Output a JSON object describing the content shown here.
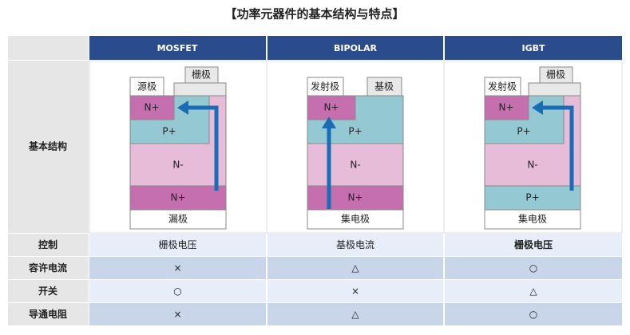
{
  "title": "【功率元器件的基本结构与特点】",
  "header": {
    "columns": [
      "MOSFET",
      "BIPOLAR",
      "IGBT"
    ]
  },
  "structure": {
    "label": "基本结构",
    "diagrams": [
      {
        "top_left": "源极",
        "top_right": "栅极",
        "layers": [
          "N+",
          "P+",
          "N-",
          "N+"
        ],
        "bottom": "漏极"
      },
      {
        "top_left": "发射极",
        "top_right": "基极",
        "layers": [
          "N+",
          "P+",
          "N-",
          "N+"
        ],
        "bottom": "集电极"
      },
      {
        "top_left": "发射极",
        "top_right": "栅极",
        "layers": [
          "N+",
          "P+",
          "N-",
          "P+"
        ],
        "bottom": "集电极"
      }
    ]
  },
  "rows": [
    {
      "label": "控制",
      "cells": [
        "栅极电压",
        "基极电流",
        "栅极电压"
      ]
    },
    {
      "label": "容许电流",
      "cells": [
        "×",
        "△",
        "○"
      ]
    },
    {
      "label": "开关",
      "cells": [
        "○",
        "×",
        "△"
      ]
    },
    {
      "label": "导通电阻",
      "cells": [
        "×",
        "△",
        "○"
      ]
    }
  ]
}
